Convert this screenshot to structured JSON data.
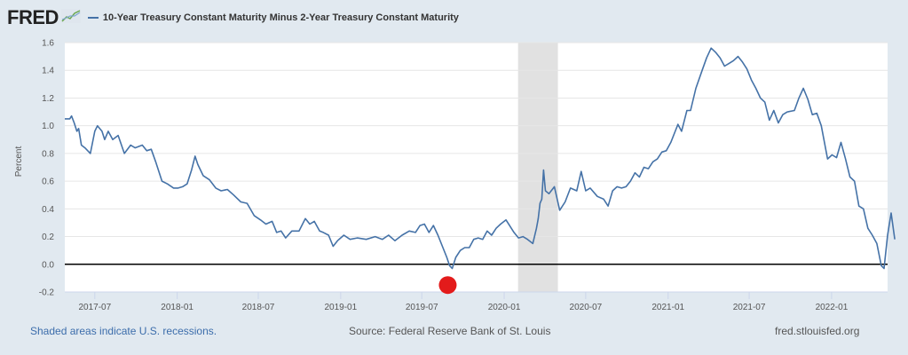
{
  "header": {
    "logo_text": "FRED",
    "logo_icon": "trend-chart-icon",
    "series_title": "10-Year Treasury Constant Maturity Minus 2-Year Treasury Constant Maturity"
  },
  "footer": {
    "recession_note": "Shaded areas indicate U.S. recessions.",
    "source": "Source: Federal Reserve Bank of St. Louis",
    "site": "fred.stlouisfed.org"
  },
  "colors": {
    "series": "#4572a7",
    "background": "#e1e9f0",
    "plot_background": "#ffffff",
    "recession_shade": "#e1e1e1",
    "zero_line": "#000000",
    "marker": "#e31b1b"
  },
  "chart_data": {
    "type": "line",
    "title": "10-Year Treasury Constant Maturity Minus 2-Year Treasury Constant Maturity",
    "xlabel": "",
    "ylabel": "Percent",
    "ylim": [
      -0.2,
      1.6
    ],
    "xlim": [
      "2017-04-25",
      "2022-05-06"
    ],
    "yticks": [
      -0.2,
      0.0,
      0.2,
      0.4,
      0.6,
      0.8,
      1.0,
      1.2,
      1.4,
      1.6
    ],
    "ytick_labels": [
      "-0.2",
      "0.0",
      "0.2",
      "0.4",
      "0.6",
      "0.8",
      "1.0",
      "1.2",
      "1.4",
      "1.6"
    ],
    "xticks": [
      "2017-07-01",
      "2018-01-01",
      "2018-07-01",
      "2019-01-01",
      "2019-07-01",
      "2020-01-01",
      "2020-07-01",
      "2021-01-01",
      "2021-07-01",
      "2022-01-01"
    ],
    "xtick_labels": [
      "2017-07",
      "2018-01",
      "2018-07",
      "2019-01",
      "2019-07",
      "2020-01",
      "2020-07",
      "2021-01",
      "2021-07",
      "2022-01"
    ],
    "grid": true,
    "legend": "top-left",
    "recessions": [
      {
        "start": "2020-02-01",
        "end": "2020-04-30"
      }
    ],
    "reference_line": {
      "y": 0.0
    },
    "annotation_marker": {
      "date": "2019-08-28",
      "y": -0.15,
      "label": "inversion-marker"
    },
    "series": [
      {
        "name": "10-Year Treasury Constant Maturity Minus 2-Year Treasury Constant Maturity",
        "points": [
          [
            "2017-04-25",
            1.05
          ],
          [
            "2017-05-06",
            1.05
          ],
          [
            "2017-05-10",
            1.07
          ],
          [
            "2017-05-16",
            1.02
          ],
          [
            "2017-05-22",
            0.96
          ],
          [
            "2017-05-26",
            0.98
          ],
          [
            "2017-06-01",
            0.86
          ],
          [
            "2017-06-09",
            0.84
          ],
          [
            "2017-06-21",
            0.8
          ],
          [
            "2017-07-01",
            0.96
          ],
          [
            "2017-07-07",
            1.0
          ],
          [
            "2017-07-17",
            0.96
          ],
          [
            "2017-07-23",
            0.9
          ],
          [
            "2017-07-31",
            0.96
          ],
          [
            "2017-08-10",
            0.9
          ],
          [
            "2017-08-22",
            0.93
          ],
          [
            "2017-09-05",
            0.8
          ],
          [
            "2017-09-19",
            0.86
          ],
          [
            "2017-09-29",
            0.84
          ],
          [
            "2017-10-15",
            0.86
          ],
          [
            "2017-10-25",
            0.82
          ],
          [
            "2017-11-04",
            0.83
          ],
          [
            "2017-11-14",
            0.74
          ],
          [
            "2017-11-28",
            0.6
          ],
          [
            "2017-12-10",
            0.58
          ],
          [
            "2017-12-24",
            0.55
          ],
          [
            "2018-01-03",
            0.55
          ],
          [
            "2018-01-13",
            0.56
          ],
          [
            "2018-01-23",
            0.58
          ],
          [
            "2018-02-02",
            0.68
          ],
          [
            "2018-02-10",
            0.78
          ],
          [
            "2018-02-16",
            0.72
          ],
          [
            "2018-02-28",
            0.64
          ],
          [
            "2018-03-14",
            0.61
          ],
          [
            "2018-03-28",
            0.55
          ],
          [
            "2018-04-09",
            0.53
          ],
          [
            "2018-04-23",
            0.54
          ],
          [
            "2018-05-07",
            0.5
          ],
          [
            "2018-05-23",
            0.45
          ],
          [
            "2018-06-06",
            0.44
          ],
          [
            "2018-06-22",
            0.35
          ],
          [
            "2018-07-06",
            0.32
          ],
          [
            "2018-07-18",
            0.29
          ],
          [
            "2018-08-01",
            0.31
          ],
          [
            "2018-08-11",
            0.23
          ],
          [
            "2018-08-21",
            0.24
          ],
          [
            "2018-08-31",
            0.19
          ],
          [
            "2018-09-14",
            0.24
          ],
          [
            "2018-09-30",
            0.24
          ],
          [
            "2018-10-14",
            0.33
          ],
          [
            "2018-10-24",
            0.29
          ],
          [
            "2018-11-03",
            0.31
          ],
          [
            "2018-11-15",
            0.24
          ],
          [
            "2018-11-23",
            0.23
          ],
          [
            "2018-12-05",
            0.21
          ],
          [
            "2018-12-15",
            0.13
          ],
          [
            "2018-12-25",
            0.17
          ],
          [
            "2019-01-08",
            0.21
          ],
          [
            "2019-01-22",
            0.18
          ],
          [
            "2019-02-07",
            0.19
          ],
          [
            "2019-02-27",
            0.18
          ],
          [
            "2019-03-19",
            0.2
          ],
          [
            "2019-04-04",
            0.18
          ],
          [
            "2019-04-18",
            0.21
          ],
          [
            "2019-05-02",
            0.17
          ],
          [
            "2019-05-18",
            0.21
          ],
          [
            "2019-06-03",
            0.24
          ],
          [
            "2019-06-17",
            0.23
          ],
          [
            "2019-06-27",
            0.28
          ],
          [
            "2019-07-07",
            0.29
          ],
          [
            "2019-07-17",
            0.23
          ],
          [
            "2019-07-27",
            0.28
          ],
          [
            "2019-08-06",
            0.21
          ],
          [
            "2019-08-16",
            0.13
          ],
          [
            "2019-08-26",
            0.05
          ],
          [
            "2019-09-01",
            -0.01
          ],
          [
            "2019-09-07",
            -0.03
          ],
          [
            "2019-09-15",
            0.05
          ],
          [
            "2019-09-25",
            0.1
          ],
          [
            "2019-10-05",
            0.12
          ],
          [
            "2019-10-15",
            0.12
          ],
          [
            "2019-10-25",
            0.18
          ],
          [
            "2019-11-04",
            0.19
          ],
          [
            "2019-11-14",
            0.18
          ],
          [
            "2019-11-24",
            0.24
          ],
          [
            "2019-12-04",
            0.21
          ],
          [
            "2019-12-14",
            0.26
          ],
          [
            "2019-12-24",
            0.29
          ],
          [
            "2020-01-05",
            0.32
          ],
          [
            "2020-01-13",
            0.28
          ],
          [
            "2020-01-23",
            0.23
          ],
          [
            "2020-02-02",
            0.19
          ],
          [
            "2020-02-12",
            0.2
          ],
          [
            "2020-02-22",
            0.18
          ],
          [
            "2020-03-05",
            0.15
          ],
          [
            "2020-03-13",
            0.26
          ],
          [
            "2020-03-17",
            0.33
          ],
          [
            "2020-03-21",
            0.44
          ],
          [
            "2020-03-25",
            0.47
          ],
          [
            "2020-03-29",
            0.68
          ],
          [
            "2020-04-02",
            0.53
          ],
          [
            "2020-04-10",
            0.51
          ],
          [
            "2020-04-22",
            0.56
          ],
          [
            "2020-05-04",
            0.39
          ],
          [
            "2020-05-16",
            0.45
          ],
          [
            "2020-05-28",
            0.55
          ],
          [
            "2020-06-11",
            0.53
          ],
          [
            "2020-06-21",
            0.67
          ],
          [
            "2020-07-01",
            0.53
          ],
          [
            "2020-07-11",
            0.55
          ],
          [
            "2020-07-27",
            0.49
          ],
          [
            "2020-08-10",
            0.47
          ],
          [
            "2020-08-20",
            0.42
          ],
          [
            "2020-08-30",
            0.53
          ],
          [
            "2020-09-09",
            0.56
          ],
          [
            "2020-09-19",
            0.55
          ],
          [
            "2020-09-29",
            0.56
          ],
          [
            "2020-10-09",
            0.6
          ],
          [
            "2020-10-19",
            0.66
          ],
          [
            "2020-10-29",
            0.63
          ],
          [
            "2020-11-08",
            0.7
          ],
          [
            "2020-11-18",
            0.69
          ],
          [
            "2020-11-28",
            0.74
          ],
          [
            "2020-12-08",
            0.76
          ],
          [
            "2020-12-18",
            0.81
          ],
          [
            "2020-12-28",
            0.82
          ],
          [
            "2021-01-07",
            0.88
          ],
          [
            "2021-01-23",
            1.01
          ],
          [
            "2021-01-31",
            0.96
          ],
          [
            "2021-02-12",
            1.11
          ],
          [
            "2021-02-20",
            1.11
          ],
          [
            "2021-03-04",
            1.27
          ],
          [
            "2021-03-18",
            1.4
          ],
          [
            "2021-03-28",
            1.49
          ],
          [
            "2021-04-07",
            1.56
          ],
          [
            "2021-04-17",
            1.53
          ],
          [
            "2021-04-27",
            1.49
          ],
          [
            "2021-05-07",
            1.43
          ],
          [
            "2021-05-17",
            1.45
          ],
          [
            "2021-05-27",
            1.47
          ],
          [
            "2021-06-06",
            1.5
          ],
          [
            "2021-06-16",
            1.46
          ],
          [
            "2021-06-26",
            1.41
          ],
          [
            "2021-07-06",
            1.33
          ],
          [
            "2021-07-16",
            1.27
          ],
          [
            "2021-07-26",
            1.2
          ],
          [
            "2021-08-05",
            1.17
          ],
          [
            "2021-08-15",
            1.04
          ],
          [
            "2021-08-25",
            1.11
          ],
          [
            "2021-09-04",
            1.02
          ],
          [
            "2021-09-14",
            1.08
          ],
          [
            "2021-09-24",
            1.1
          ],
          [
            "2021-10-10",
            1.11
          ],
          [
            "2021-10-20",
            1.2
          ],
          [
            "2021-10-30",
            1.27
          ],
          [
            "2021-11-09",
            1.19
          ],
          [
            "2021-11-19",
            1.08
          ],
          [
            "2021-11-29",
            1.09
          ],
          [
            "2021-12-09",
            1.0
          ],
          [
            "2021-12-23",
            0.76
          ],
          [
            "2022-01-02",
            0.79
          ],
          [
            "2022-01-12",
            0.77
          ],
          [
            "2022-01-22",
            0.88
          ],
          [
            "2022-02-01",
            0.76
          ],
          [
            "2022-02-11",
            0.63
          ],
          [
            "2022-02-21",
            0.6
          ],
          [
            "2022-03-03",
            0.42
          ],
          [
            "2022-03-13",
            0.4
          ],
          [
            "2022-03-23",
            0.26
          ],
          [
            "2022-04-02",
            0.21
          ],
          [
            "2022-04-12",
            0.15
          ],
          [
            "2022-04-22",
            -0.01
          ],
          [
            "2022-04-28",
            -0.03
          ],
          [
            "2022-05-06",
            0.21
          ],
          [
            "2022-05-14",
            0.37
          ],
          [
            "2022-05-22",
            0.18
          ]
        ]
      }
    ]
  }
}
